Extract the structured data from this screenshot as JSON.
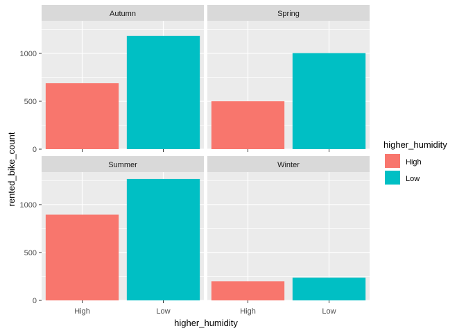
{
  "chart_data": {
    "type": "bar",
    "xlabel": "higher_humidity",
    "ylabel": "rented_bike_count",
    "categories": [
      "High",
      "Low"
    ],
    "ylim": [
      0,
      1340
    ],
    "yticks": [
      0,
      500,
      1000
    ],
    "ytick_labels": [
      "0",
      "500",
      "1000"
    ],
    "facets": [
      {
        "name": "Autumn",
        "values": [
          688,
          1182
        ]
      },
      {
        "name": "Spring",
        "values": [
          500,
          1003
        ]
      },
      {
        "name": "Summer",
        "values": [
          895,
          1268
        ]
      },
      {
        "name": "Winter",
        "values": [
          200,
          237
        ]
      }
    ],
    "legend": {
      "title": "higher_humidity",
      "position": "right",
      "entries": [
        {
          "label": "High",
          "color": "#F8766D"
        },
        {
          "label": "Low",
          "color": "#00BFC4"
        }
      ]
    },
    "colors": {
      "panel_bg": "#EBEBEB",
      "strip_bg": "#D9D9D9",
      "grid": "#FFFFFF"
    },
    "grid": true
  }
}
